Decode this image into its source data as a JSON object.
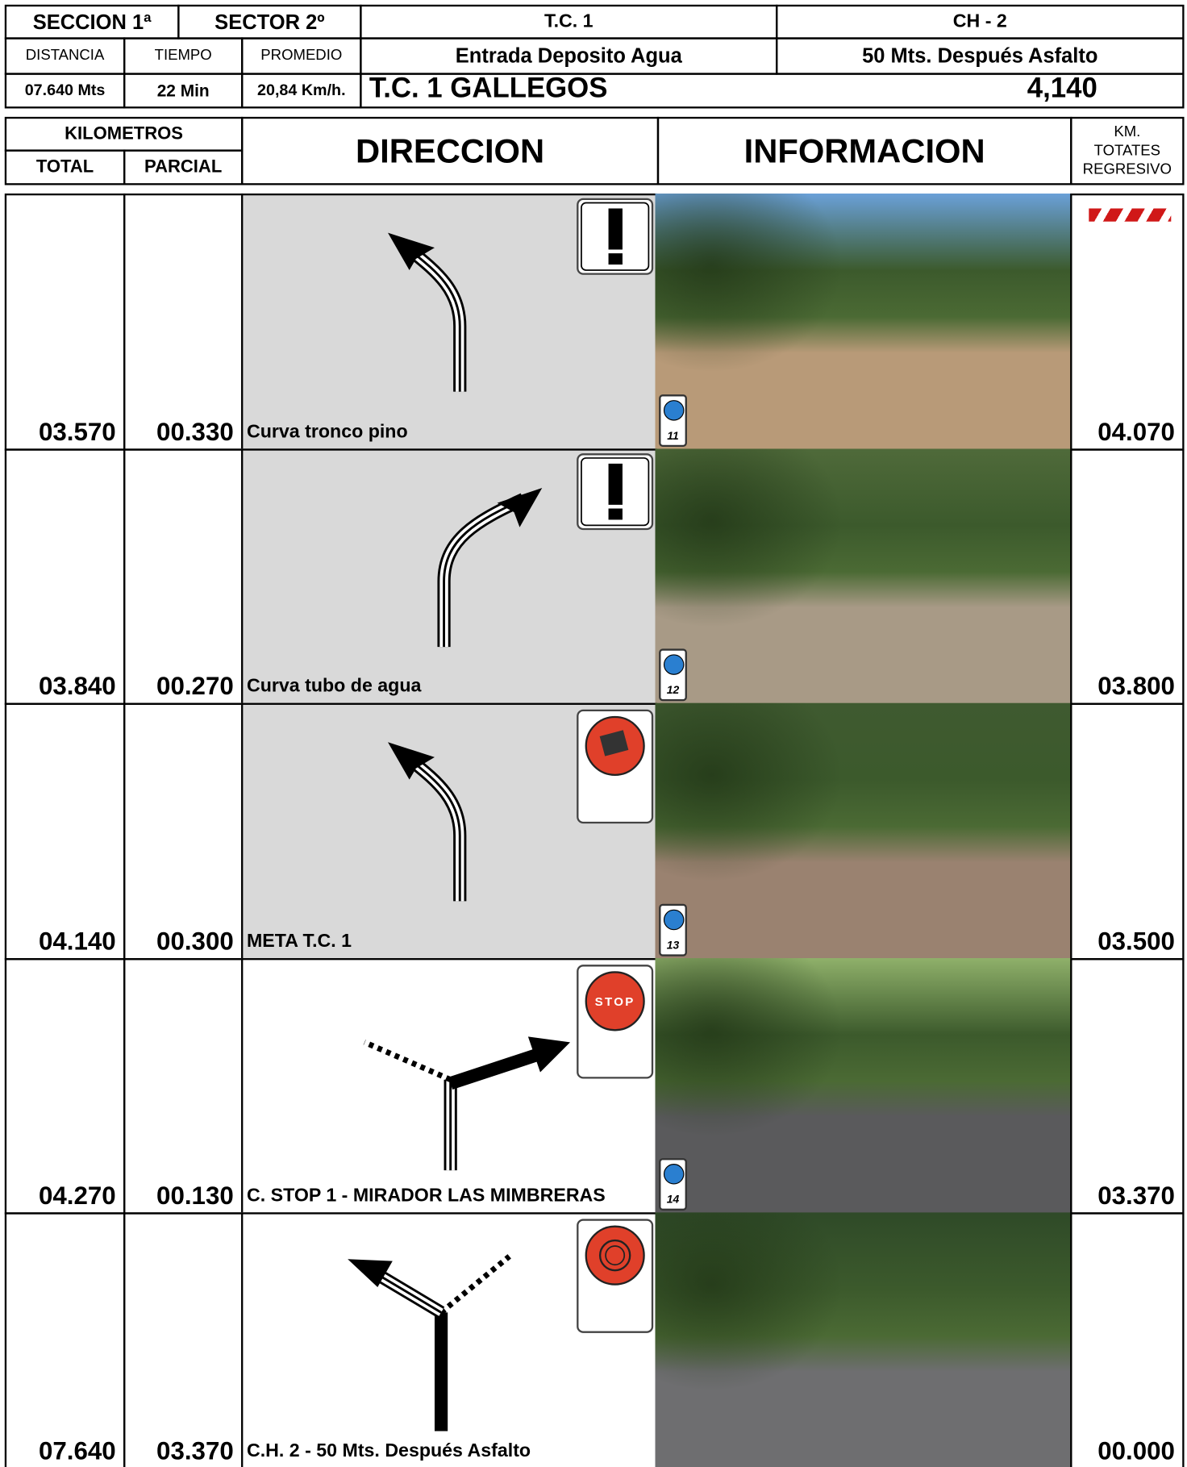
{
  "header": {
    "seccion": "SECCION 1ª",
    "sector": "SECTOR 2º",
    "tc": "T.C. 1",
    "ch": "CH - 2",
    "distancia_label": "DISTANCIA",
    "tiempo_label": "TIEMPO",
    "promedio_label": "PROMEDIO",
    "tc_name": "Entrada Deposito Agua",
    "ch_name": "50 Mts. Después Asfalto",
    "distancia": "07.640 Mts",
    "tiempo": "22 Min",
    "promedio": "20,84 Km/h.",
    "stage": "T.C. 1 GALLEGOS",
    "stage_km": "4,140"
  },
  "columns": {
    "kilometros": "KILOMETROS",
    "total": "TOTAL",
    "parcial": "PARCIAL",
    "direccion": "DIRECCION",
    "informacion": "INFORMACION",
    "regresivo": [
      "KM.",
      "TOTATES",
      "REGRESIVO"
    ]
  },
  "rows": [
    {
      "total": "03.570",
      "parcial": "00.330",
      "label": "Curva tronco pino",
      "photo_number": "11",
      "regresivo": "04.070"
    },
    {
      "total": "03.840",
      "parcial": "00.270",
      "label": "Curva tubo de agua",
      "photo_number": "12",
      "regresivo": "03.800"
    },
    {
      "total": "04.140",
      "parcial": "00.300",
      "label": "META T.C. 1",
      "photo_number": "13",
      "regresivo": "03.500"
    },
    {
      "total": "04.270",
      "parcial": "00.130",
      "label": "C. STOP 1 - MIRADOR LAS MIMBRERAS",
      "photo_number": "14",
      "sign_text": "STOP",
      "regresivo": "03.370"
    },
    {
      "total": "07.640",
      "parcial": "03.370",
      "label": "C.H. 2 - 50 Mts. Después Asfalto",
      "regresivo": "00.000"
    }
  ]
}
